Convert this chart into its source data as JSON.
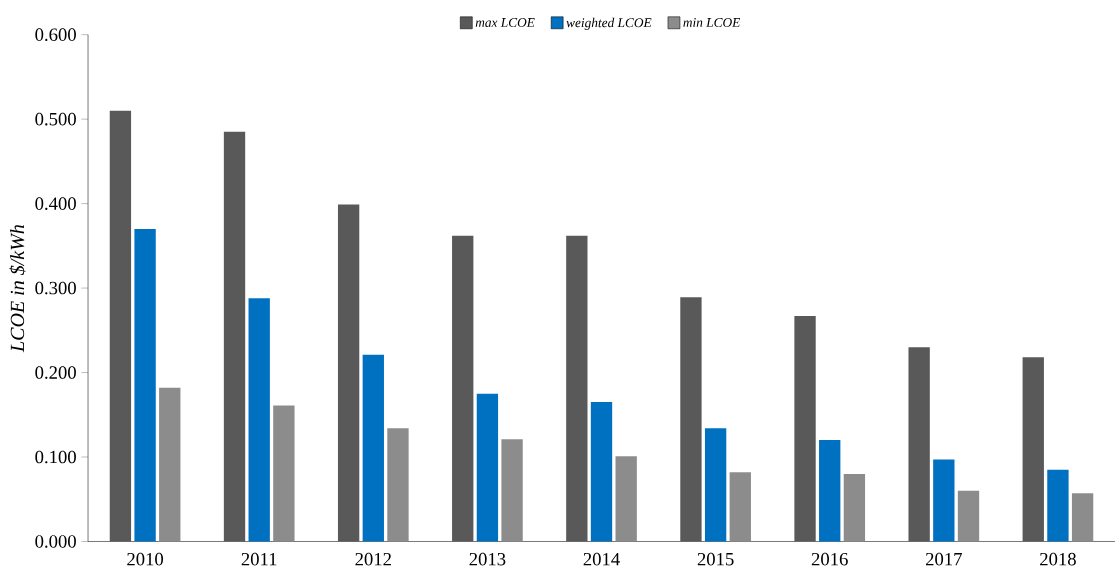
{
  "chart_data": {
    "type": "bar",
    "ylabel": "LCOE in $/kWh",
    "categories": [
      "2010",
      "2011",
      "2012",
      "2013",
      "2014",
      "2015",
      "2016",
      "2017",
      "2018"
    ],
    "series": [
      {
        "name": "max LCOE",
        "color": "#595959",
        "values": [
          0.51,
          0.485,
          0.399,
          0.362,
          0.362,
          0.289,
          0.267,
          0.23,
          0.218
        ]
      },
      {
        "name": "weighted LCOE",
        "color": "#0070c0",
        "values": [
          0.37,
          0.288,
          0.221,
          0.175,
          0.165,
          0.134,
          0.12,
          0.097,
          0.085
        ]
      },
      {
        "name": "min LCOE",
        "color": "#8c8c8c",
        "values": [
          0.182,
          0.161,
          0.134,
          0.121,
          0.101,
          0.082,
          0.08,
          0.06,
          0.057
        ]
      }
    ],
    "ylim": [
      0,
      0.6
    ],
    "yticks": [
      {
        "value": 0,
        "label": "0.000"
      },
      {
        "value": 0.1,
        "label": "0.100"
      },
      {
        "value": 0.2,
        "label": "0.200"
      },
      {
        "value": 0.3,
        "label": "0.300"
      },
      {
        "value": 0.4,
        "label": "0.400"
      },
      {
        "value": 0.5,
        "label": "0.500"
      },
      {
        "value": 0.6,
        "label": "0.600"
      }
    ],
    "grid": false,
    "legend": "top"
  }
}
